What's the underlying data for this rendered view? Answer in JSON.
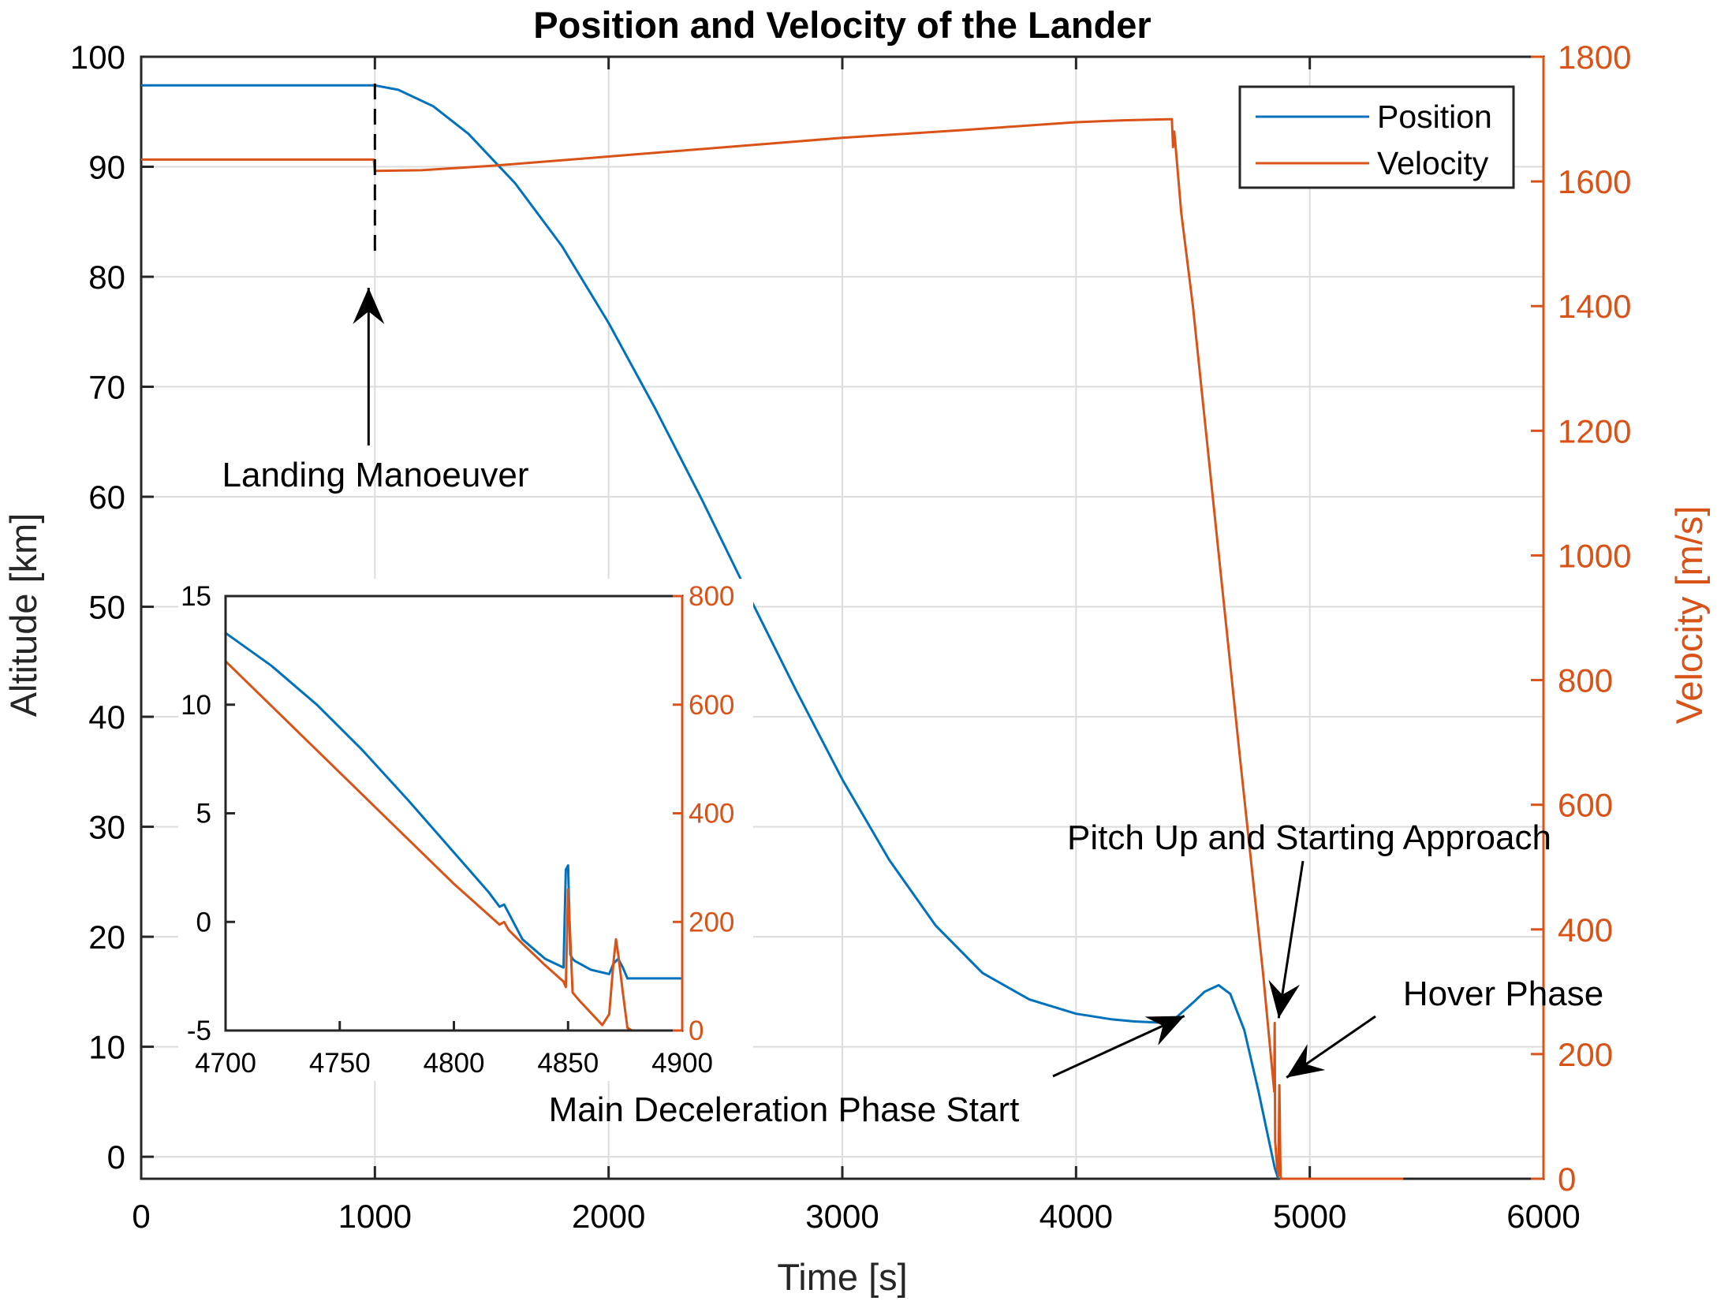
{
  "chart_data": [
    {
      "id": "main",
      "type": "line",
      "title": "Position and Velocity of the Lander",
      "xlabel": "Time [s]",
      "ylabel_left": "Altitude [km]",
      "ylabel_right": "Velocity [m/s]",
      "xlim": [
        0,
        6000
      ],
      "ylim_left": [
        -2,
        100
      ],
      "ylim_right": [
        0,
        1800
      ],
      "xticks": [
        0,
        1000,
        2000,
        3000,
        4000,
        5000,
        6000
      ],
      "yticks_left": [
        0,
        10,
        20,
        30,
        40,
        50,
        60,
        70,
        80,
        90,
        100
      ],
      "yticks_right": [
        0,
        200,
        400,
        600,
        800,
        1000,
        1200,
        1400,
        1600,
        1800
      ],
      "grid": true,
      "legend": {
        "location": "top-right",
        "entries": [
          "Position",
          "Velocity"
        ]
      },
      "colors": {
        "position": "#0072BD",
        "velocity": "#D95319",
        "marker_line": "#000000"
      },
      "series": [
        {
          "name": "Position",
          "axis": "left",
          "x": [
            0,
            950,
            1000,
            1100,
            1250,
            1400,
            1600,
            1800,
            2000,
            2200,
            2400,
            2600,
            2800,
            3000,
            3200,
            3400,
            3600,
            3800,
            4000,
            4150,
            4250,
            4350,
            4420,
            4500,
            4550,
            4610,
            4660,
            4720,
            4780,
            4820,
            4850,
            4865
          ],
          "y": [
            97.4,
            97.4,
            97.4,
            97.0,
            95.5,
            93.0,
            88.5,
            82.8,
            75.8,
            68.0,
            59.7,
            51.0,
            42.5,
            34.3,
            27.0,
            21.0,
            16.7,
            14.3,
            13.0,
            12.5,
            12.3,
            12.2,
            12.5,
            14.0,
            15.0,
            15.6,
            14.8,
            11.5,
            6.0,
            2.0,
            -1.0,
            -2.0
          ]
        },
        {
          "name": "Velocity",
          "axis": "right",
          "x": [
            0,
            995,
            1000,
            1200,
            1500,
            2000,
            2500,
            3000,
            3500,
            4000,
            4200,
            4410,
            4415,
            4420,
            4425,
            4450,
            4500,
            4600,
            4700,
            4800,
            4848,
            4850,
            4852,
            4860,
            4866,
            4870,
            4872,
            4874,
            4876,
            4900,
            5000,
            5400
          ],
          "y": [
            1635,
            1635,
            1617,
            1618,
            1625,
            1640,
            1655,
            1670,
            1682,
            1695,
            1698,
            1700,
            1655,
            1680,
            1660,
            1550,
            1400,
            1040,
            680,
            330,
            140,
            250,
            60,
            20,
            5,
            150,
            95,
            30,
            0,
            0,
            0,
            0
          ]
        }
      ],
      "annotations": [
        {
          "text": "Landing Manoeuver",
          "arrow_to": [
            1000,
            79
          ]
        },
        {
          "text": "Pitch Up and Starting Approach",
          "arrow_to": [
            4840,
            12.6
          ]
        },
        {
          "text": "Hover Phase",
          "arrow_to": [
            4860,
            7.2
          ]
        },
        {
          "text": "Main Deceleration Phase Start",
          "arrow_to": [
            4450,
            12.8
          ]
        }
      ]
    },
    {
      "id": "inset",
      "type": "line",
      "xlim": [
        4700,
        4900
      ],
      "ylim_left": [
        -5,
        15
      ],
      "ylim_right": [
        0,
        800
      ],
      "xticks": [
        4700,
        4750,
        4800,
        4850,
        4900
      ],
      "yticks_left": [
        -5,
        0,
        5,
        10,
        15
      ],
      "yticks_right": [
        0,
        200,
        400,
        600,
        800
      ],
      "grid": false,
      "series": [
        {
          "name": "Position",
          "axis": "left",
          "x": [
            4700,
            4720,
            4740,
            4760,
            4780,
            4800,
            4815,
            4820,
            4822,
            4824,
            4830,
            4840,
            4848,
            4849,
            4850,
            4851,
            4852,
            4853,
            4860,
            4868,
            4870,
            4872,
            4874,
            4876,
            4878,
            4880,
            4900
          ],
          "y": [
            13.3,
            11.8,
            10.0,
            7.9,
            5.6,
            3.2,
            1.4,
            0.7,
            0.8,
            0.4,
            -0.8,
            -1.7,
            -2.1,
            2.4,
            2.6,
            -1.5,
            -1.7,
            -1.8,
            -2.2,
            -2.4,
            -1.9,
            -1.7,
            -2.1,
            -2.6,
            -2.6,
            -2.6,
            -2.6
          ]
        },
        {
          "name": "Velocity",
          "axis": "right",
          "x": [
            4700,
            4720,
            4740,
            4760,
            4780,
            4800,
            4820,
            4822,
            4824,
            4830,
            4840,
            4848,
            4849,
            4850,
            4851,
            4852,
            4855,
            4865,
            4868,
            4870,
            4871,
            4872,
            4874,
            4876,
            4878,
            4880,
            4890,
            4900
          ],
          "y": [
            680,
            598,
            516,
            434,
            352,
            270,
            195,
            200,
            185,
            160,
            120,
            90,
            80,
            260,
            170,
            70,
            55,
            10,
            30,
            130,
            168,
            140,
            70,
            5,
            0,
            0,
            0,
            0
          ]
        }
      ]
    }
  ]
}
